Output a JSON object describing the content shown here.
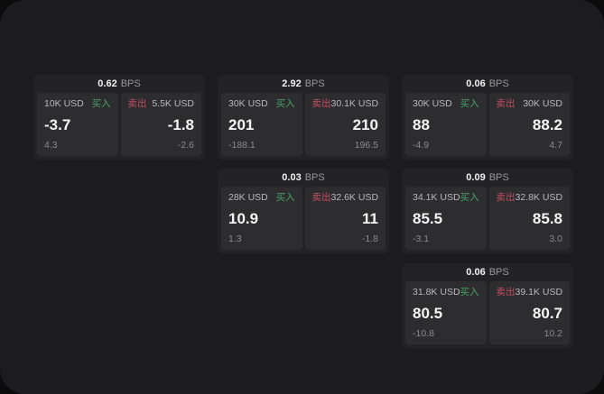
{
  "colors": {
    "buy_accent": "#47a368",
    "sell_accent": "#c24e63",
    "surface": "#1c1c1e",
    "card": "#232325",
    "panel": "#2d2d2f"
  },
  "cards": [
    {
      "bps_value": "0.62",
      "bps_unit": "BPS",
      "buy": {
        "notional": "10K USD",
        "side_label": "买入",
        "price": "-3.7",
        "delta": "4.3"
      },
      "sell": {
        "side_label": "卖出",
        "notional": "5.5K USD",
        "price": "-1.8",
        "delta": "-2.6"
      }
    },
    {
      "bps_value": "2.92",
      "bps_unit": "BPS",
      "buy": {
        "notional": "30K USD",
        "side_label": "买入",
        "price": "201",
        "delta": "-188.1"
      },
      "sell": {
        "side_label": "卖出",
        "notional": "30.1K USD",
        "price": "210",
        "delta": "196.5"
      }
    },
    {
      "bps_value": "0.06",
      "bps_unit": "BPS",
      "buy": {
        "notional": "30K USD",
        "side_label": "买入",
        "price": "88",
        "delta": "-4.9"
      },
      "sell": {
        "side_label": "卖出",
        "notional": "30K USD",
        "price": "88.2",
        "delta": "4.7"
      }
    },
    {
      "bps_value": "0.03",
      "bps_unit": "BPS",
      "buy": {
        "notional": "28K USD",
        "side_label": "买入",
        "price": "10.9",
        "delta": "1.3"
      },
      "sell": {
        "side_label": "卖出",
        "notional": "32.6K USD",
        "price": "11",
        "delta": "-1.8"
      }
    },
    {
      "bps_value": "0.09",
      "bps_unit": "BPS",
      "buy": {
        "notional": "34.1K USD",
        "side_label": "买入",
        "price": "85.5",
        "delta": "-3.1"
      },
      "sell": {
        "side_label": "卖出",
        "notional": "32.8K USD",
        "price": "85.8",
        "delta": "3.0"
      }
    },
    {
      "bps_value": "0.06",
      "bps_unit": "BPS",
      "buy": {
        "notional": "31.8K USD",
        "side_label": "买入",
        "price": "80.5",
        "delta": "-10.8"
      },
      "sell": {
        "side_label": "卖出",
        "notional": "39.1K USD",
        "price": "80.7",
        "delta": "10.2"
      }
    }
  ]
}
